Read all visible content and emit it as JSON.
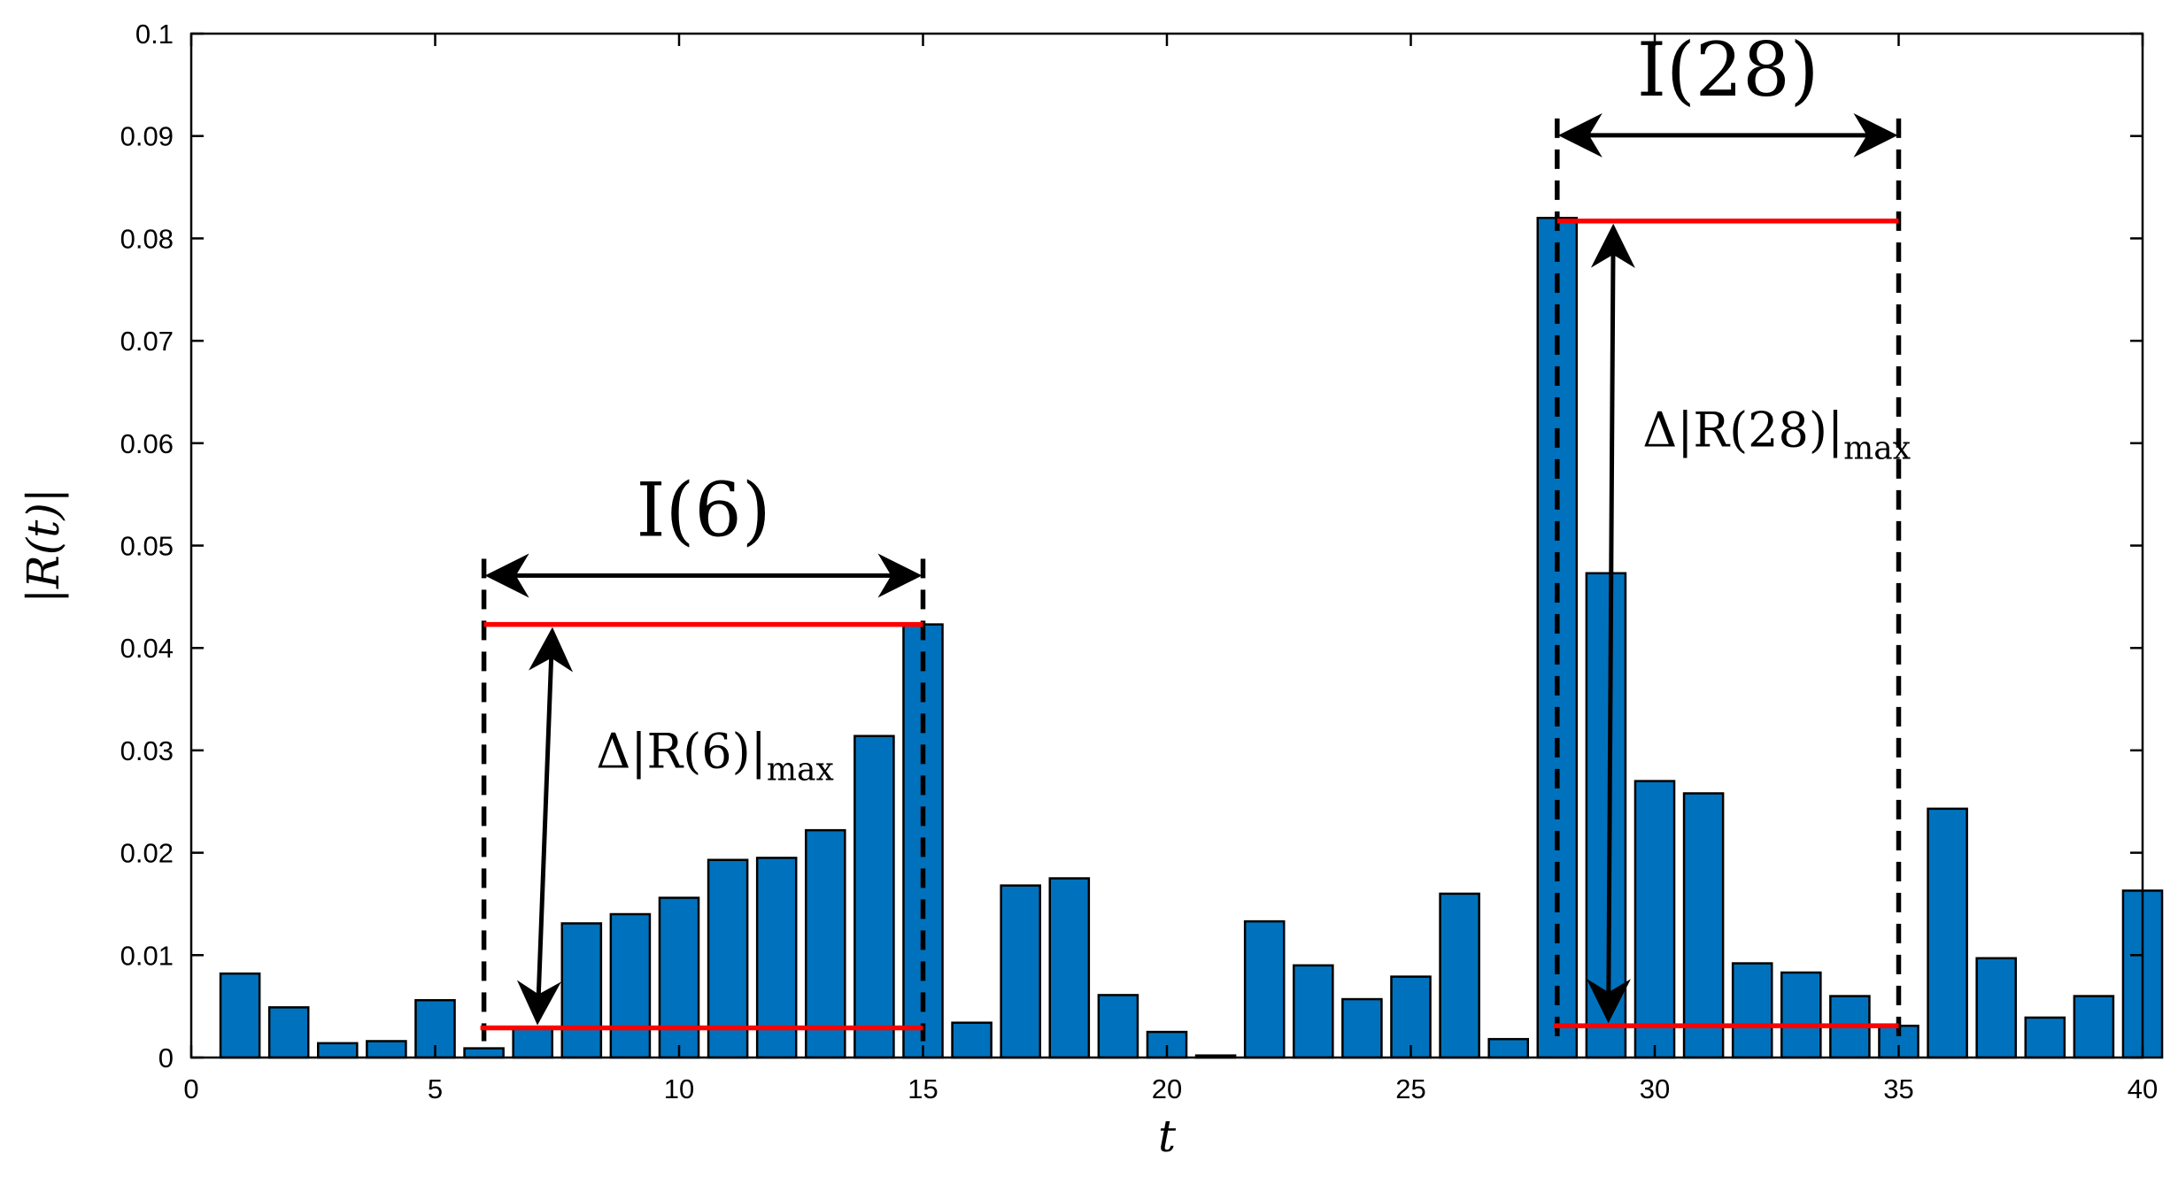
{
  "chart_data": {
    "type": "bar",
    "xlabel": "t",
    "ylabel": "|R(t)|",
    "xlim": [
      0,
      40
    ],
    "ylim": [
      0,
      0.1
    ],
    "xticks": [
      "0",
      "5",
      "10",
      "15",
      "20",
      "25",
      "30",
      "35",
      "40"
    ],
    "yticks": [
      "0",
      "0.01",
      "0.02",
      "0.03",
      "0.04",
      "0.05",
      "0.06",
      "0.07",
      "0.08",
      "0.09",
      "0.1"
    ],
    "bar_color": "#0072bd",
    "x": [
      1,
      2,
      3,
      4,
      5,
      6,
      7,
      8,
      9,
      10,
      11,
      12,
      13,
      14,
      15,
      16,
      17,
      18,
      19,
      20,
      21,
      22,
      23,
      24,
      25,
      26,
      27,
      28,
      29,
      30,
      31,
      32,
      33,
      34,
      35,
      36,
      37,
      38,
      39,
      40
    ],
    "values": [
      0.0082,
      0.0049,
      0.0014,
      0.0016,
      0.0056,
      0.0009,
      0.0028,
      0.0131,
      0.014,
      0.0156,
      0.0193,
      0.0195,
      0.0222,
      0.0314,
      0.0423,
      0.0034,
      0.0168,
      0.0175,
      0.0061,
      0.0025,
      0.0002,
      0.0133,
      0.009,
      0.0057,
      0.0079,
      0.016,
      0.0018,
      0.082,
      0.0473,
      0.027,
      0.0258,
      0.0092,
      0.0083,
      0.006,
      0.0031,
      0.0243,
      0.0097,
      0.0039,
      0.006,
      0.0163
    ],
    "annotations": [
      {
        "id": "I6",
        "interval_label": "I(6)",
        "delta_label": "Δ|R(6)|",
        "delta_subscript": "max",
        "t_start": 6,
        "t_end": 15,
        "low": 0.0029,
        "high": 0.0423,
        "top": 0.0475,
        "line_color": "#ff0000"
      },
      {
        "id": "I28",
        "interval_label": "I(28)",
        "delta_label": "Δ|R(28)|",
        "delta_subscript": "max",
        "t_start": 28,
        "t_end": 35,
        "low": 0.0031,
        "high": 0.0817,
        "top": 0.0905,
        "line_color": "#ff0000"
      }
    ]
  }
}
